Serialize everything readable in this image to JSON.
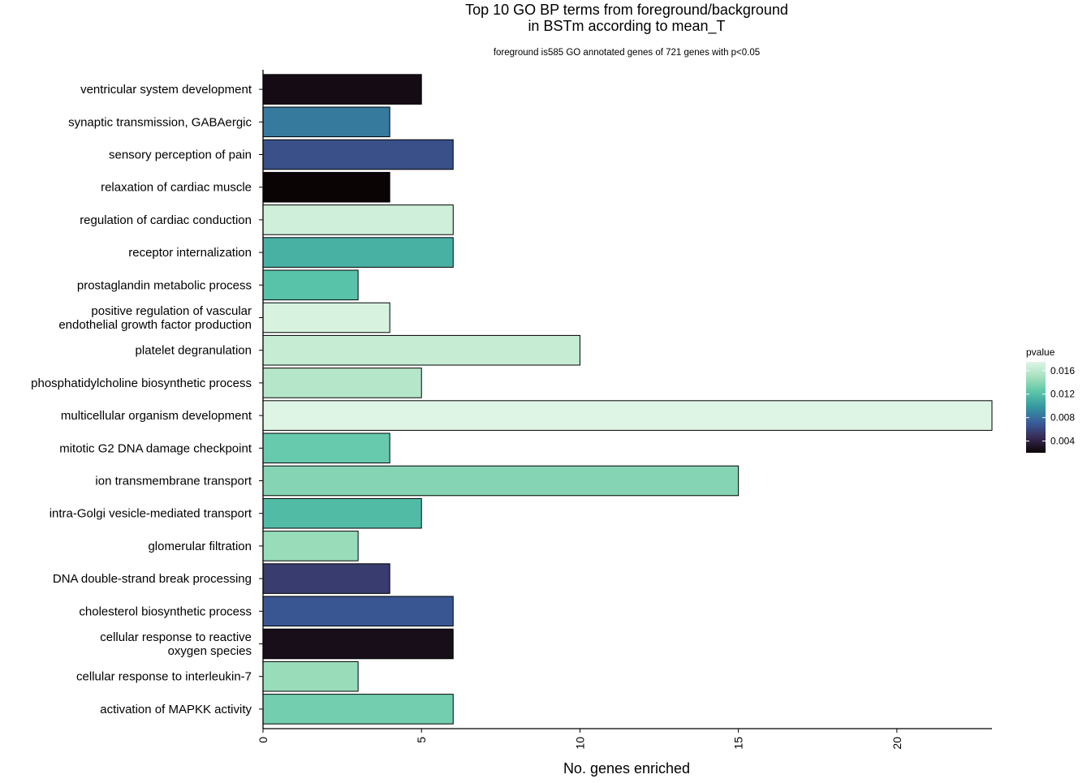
{
  "chart_data": {
    "type": "bar",
    "orientation": "horizontal",
    "title_lines": [
      "Top 10 GO BP terms from foreground/background",
      "in BSTm according to mean_T"
    ],
    "subtitle": "foreground is585 GO annotated genes of 721 genes with p<0.05",
    "xlabel": "No. genes enriched",
    "ylabel": "",
    "xlim": [
      0,
      23
    ],
    "xticks": [
      0,
      5,
      10,
      15,
      20
    ],
    "categories": [
      {
        "lines": [
          "ventricular system development"
        ],
        "value": 5,
        "pvalue": 0.0025
      },
      {
        "lines": [
          "synaptic transmission, GABAergic"
        ],
        "value": 4,
        "pvalue": 0.0085
      },
      {
        "lines": [
          "sensory perception of pain"
        ],
        "value": 6,
        "pvalue": 0.0065
      },
      {
        "lines": [
          "relaxation of cardiac muscle"
        ],
        "value": 4,
        "pvalue": 0.0015
      },
      {
        "lines": [
          "regulation of cardiac conduction"
        ],
        "value": 6,
        "pvalue": 0.0168
      },
      {
        "lines": [
          "receptor internalization"
        ],
        "value": 6,
        "pvalue": 0.0112
      },
      {
        "lines": [
          "prostaglandin metabolic process"
        ],
        "value": 3,
        "pvalue": 0.0122
      },
      {
        "lines": [
          "positive regulation of vascular",
          "endothelial growth factor production"
        ],
        "value": 4,
        "pvalue": 0.0172
      },
      {
        "lines": [
          "platelet degranulation"
        ],
        "value": 10,
        "pvalue": 0.0164
      },
      {
        "lines": [
          "phosphatidylcholine biosynthetic process"
        ],
        "value": 5,
        "pvalue": 0.0157
      },
      {
        "lines": [
          "multicellular organism development"
        ],
        "value": 23,
        "pvalue": 0.0178
      },
      {
        "lines": [
          "mitotic G2 DNA damage checkpoint"
        ],
        "value": 4,
        "pvalue": 0.0128
      },
      {
        "lines": [
          "ion transmembrane transport"
        ],
        "value": 15,
        "pvalue": 0.0138
      },
      {
        "lines": [
          "intra-Golgi vesicle-mediated transport"
        ],
        "value": 5,
        "pvalue": 0.0118
      },
      {
        "lines": [
          "glomerular filtration"
        ],
        "value": 3,
        "pvalue": 0.0145
      },
      {
        "lines": [
          "DNA double-strand break processing"
        ],
        "value": 4,
        "pvalue": 0.0055
      },
      {
        "lines": [
          "cholesterol biosynthetic process"
        ],
        "value": 6,
        "pvalue": 0.0068
      },
      {
        "lines": [
          "cellular response to reactive",
          "oxygen species"
        ],
        "value": 6,
        "pvalue": 0.0027
      },
      {
        "lines": [
          "cellular response to interleukin-7"
        ],
        "value": 3,
        "pvalue": 0.0145
      },
      {
        "lines": [
          "activation of MAPKK activity"
        ],
        "value": 6,
        "pvalue": 0.0132
      }
    ],
    "legend": {
      "title": "pvalue",
      "placement": "right",
      "range": [
        0.002,
        0.0175
      ],
      "ticks": [
        0.004,
        0.008,
        0.012,
        0.016
      ],
      "tick_labels": [
        "0.004",
        "0.008",
        "0.012",
        "0.016"
      ],
      "color_stops": [
        "#0b0405",
        "#382a54",
        "#395d9c",
        "#3496a0",
        "#5ac5a8",
        "#a5e0bd",
        "#def5e5"
      ]
    },
    "grid": false
  }
}
